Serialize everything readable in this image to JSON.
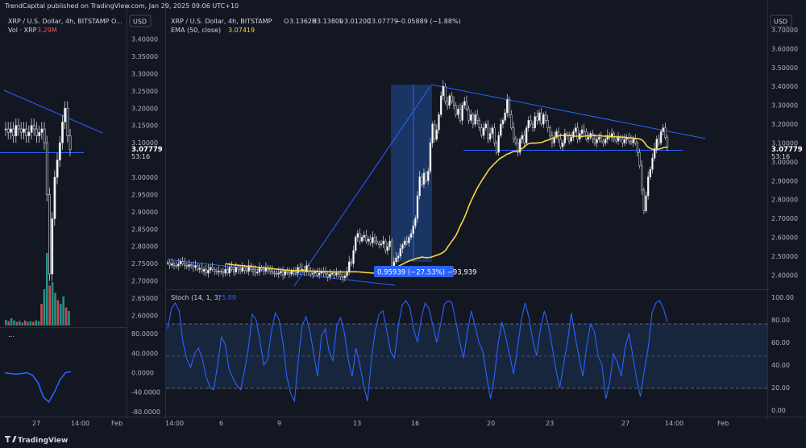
{
  "header": {
    "published": "TrendCapital published on TradingView.com, Jan 29, 2025 09:06 UTC+10",
    "left_symbol": "XRP / U.S. Dollar, 4h, BITSTAMP O...",
    "left_volume_label": "Vol · XRP",
    "left_volume_value": "3.29M",
    "left_osc_label": "...",
    "main_symbol": "XRP / U.S. Dollar, 4h, BITSTAMP",
    "ohlc": {
      "o_label": "O",
      "o": "3.13628",
      "h_label": "H",
      "h": "3.13809",
      "l_label": "L",
      "l": "3.01200",
      "c_label": "C",
      "c": "3.07779",
      "change": "−0.05889 (−1.88%)"
    },
    "ema_label": "EMA (50, close)",
    "ema_value": "3.07419",
    "stoch_label": "Stoch (14, 1, 3)",
    "stoch_value": "75.89"
  },
  "currency_button": "USD",
  "right_currency_button": "USD",
  "price_label": "3.07779",
  "countdown": "53:16",
  "measure_label": "0.95939 (−27.53%) −93,939",
  "footer_logo": "TradingView",
  "colors": {
    "background": "#131722",
    "up": "#ffffff",
    "trendline": "#2962ff",
    "ema": "#f5d547",
    "stoch": "#2962ff",
    "measure_fill": "#1e3f7a",
    "volume_up": "#26a69a",
    "volume_down": "#ef5350"
  },
  "chart_data": [
    {
      "type": "line",
      "panel": "left price chart",
      "y_axis_ticks": [
        "3.40000",
        "3.35000",
        "3.30000",
        "3.25000",
        "3.20000",
        "3.15000",
        "3.10000",
        "3.00000",
        "2.95000",
        "2.90000",
        "2.85000",
        "2.80000",
        "2.75000",
        "2.70000",
        "2.65000",
        "2.60000"
      ],
      "ylim": [
        2.58,
        3.42
      ],
      "x_axis_ticks": [
        "27",
        "14:00",
        "Feb"
      ],
      "close": [
        3.14,
        3.13,
        3.14,
        3.12,
        3.15,
        3.14,
        3.13,
        3.14,
        3.12,
        3.13,
        3.15,
        3.14,
        3.12,
        3.13,
        3.14,
        3.1,
        2.95,
        2.72,
        2.88,
        3.0,
        3.05,
        3.1,
        3.16,
        3.2,
        3.12,
        3.08
      ]
    },
    {
      "type": "line",
      "panel": "left oscillator",
      "y_axis_ticks": [
        "80.0000",
        "40.0000",
        "0.0000",
        "-40.0000",
        "-80.0000"
      ],
      "ylim": [
        -85,
        85
      ],
      "values": [
        0,
        -2,
        -3,
        -2,
        0,
        -5,
        -20,
        -50,
        -60,
        -40,
        -15,
        0,
        2
      ]
    },
    {
      "type": "line",
      "panel": "main price chart",
      "x_axis_ticks": [
        "14:00",
        "6",
        "9",
        "13",
        "16",
        "20",
        "23",
        "27",
        "14:00",
        "Feb"
      ],
      "y_axis_ticks": [
        "3.70000",
        "3.60000",
        "3.50000",
        "3.40000",
        "3.30000",
        "3.20000",
        "3.10000",
        "3.00000",
        "2.90000",
        "2.80000",
        "2.70000",
        "2.60000",
        "2.50000",
        "2.40000"
      ],
      "ylim": [
        2.32,
        3.73
      ],
      "close": [
        2.465,
        2.452,
        2.46,
        2.45,
        2.448,
        2.458,
        2.472,
        2.46,
        2.45,
        2.445,
        2.455,
        2.45,
        2.44,
        2.45,
        2.43,
        2.435,
        2.42,
        2.43,
        2.41,
        2.425,
        2.44,
        2.43,
        2.42,
        2.415,
        2.42,
        2.418,
        2.41,
        2.43,
        2.41,
        2.44,
        2.43,
        2.415,
        2.44,
        2.43,
        2.42,
        2.44,
        2.425,
        2.42,
        2.45,
        2.43,
        2.42,
        2.41,
        2.415,
        2.44,
        2.43,
        2.42,
        2.44,
        2.43,
        2.42,
        2.41,
        2.408,
        2.405,
        2.41,
        2.42,
        2.4,
        2.42,
        2.412,
        2.405,
        2.42,
        2.415,
        2.41,
        2.44,
        2.42,
        2.43,
        2.415,
        2.45,
        2.42,
        2.405,
        2.41,
        2.415,
        2.4,
        2.41,
        2.42,
        2.41,
        2.405,
        2.39,
        2.405,
        2.41,
        2.4,
        2.41,
        2.405,
        2.39,
        2.385,
        2.395,
        2.42,
        2.47,
        2.46,
        2.53,
        2.6,
        2.62,
        2.58,
        2.6,
        2.61,
        2.58,
        2.59,
        2.57,
        2.6,
        2.58,
        2.57,
        2.56,
        2.565,
        2.58,
        2.53,
        2.55,
        2.58,
        2.44,
        2.47,
        2.49,
        2.5,
        2.54,
        2.56,
        2.58,
        2.57,
        2.6,
        2.62,
        2.66,
        2.7,
        2.82,
        2.92,
        2.88,
        2.94,
        2.9,
        2.95,
        3.1,
        3.2,
        3.12,
        3.17,
        3.25,
        3.35,
        3.4,
        3.32,
        3.3,
        3.35,
        3.32,
        3.3,
        3.25,
        3.28,
        3.22,
        3.3,
        3.32,
        3.28,
        3.22,
        3.25,
        3.2,
        3.25,
        3.22,
        3.18,
        3.14,
        3.18,
        3.2,
        3.12,
        3.15,
        3.18,
        3.1,
        3.05,
        3.14,
        3.2,
        3.22,
        3.26,
        3.33,
        3.25,
        3.18,
        3.12,
        3.1,
        3.05,
        3.12,
        3.14,
        3.1,
        3.18,
        3.22,
        3.2,
        3.18,
        3.24,
        3.22,
        3.26,
        3.2,
        3.25,
        3.22,
        3.18,
        3.14,
        3.1,
        3.13,
        3.16,
        3.12,
        3.08,
        3.1,
        3.15,
        3.14,
        3.11,
        3.13,
        3.16,
        3.18,
        3.12,
        3.15,
        3.17,
        3.16,
        3.12,
        3.13,
        3.15,
        3.12,
        3.1,
        3.12,
        3.13,
        3.11,
        3.1,
        3.12,
        3.14,
        3.13,
        3.15,
        3.12,
        3.11,
        3.13,
        3.12,
        3.1,
        3.12,
        3.13,
        3.11,
        3.1,
        3.12,
        3.1,
        3.05,
        2.98,
        2.85,
        2.74,
        2.82,
        2.92,
        2.96,
        3.02,
        3.07,
        3.12,
        3.1,
        3.16,
        3.18,
        3.13,
        3.08
      ],
      "ema50": [
        2.46,
        2.458,
        2.457,
        2.455,
        2.454,
        2.453,
        2.452,
        2.451,
        2.45,
        2.449,
        2.448,
        2.447,
        2.446,
        2.445,
        2.444,
        2.443,
        2.442,
        2.441,
        2.44,
        2.439,
        2.438,
        2.437,
        2.436,
        2.435,
        2.434,
        2.433,
        2.432,
        2.431,
        2.43,
        2.429,
        2.428,
        2.427,
        2.426,
        2.425,
        2.424,
        2.424,
        2.424,
        2.423,
        2.423,
        2.423,
        2.422,
        2.422,
        2.422,
        2.421,
        2.421,
        2.421,
        2.42,
        2.42,
        2.42,
        2.419,
        2.419,
        2.418,
        2.418,
        2.418,
        2.417,
        2.417,
        2.417,
        2.416,
        2.416,
        2.416,
        2.416,
        2.416,
        2.416,
        2.416,
        2.416,
        2.417,
        2.417,
        2.417,
        2.417,
        2.417,
        2.416,
        2.416,
        2.415,
        2.414,
        2.413,
        2.412,
        2.412,
        2.411,
        2.41,
        2.41,
        2.409,
        2.408,
        2.407,
        2.406,
        2.407,
        2.409,
        2.411,
        2.416,
        2.423,
        2.43,
        2.436,
        2.442,
        2.449,
        2.454,
        2.459,
        2.464,
        2.469,
        2.474,
        2.478,
        2.481,
        2.484,
        2.488,
        2.49,
        2.492,
        2.495,
        2.493,
        2.492,
        2.492,
        2.493,
        2.495,
        2.498,
        2.502,
        2.505,
        2.509,
        2.513,
        2.519,
        2.526,
        2.538,
        2.554,
        2.567,
        2.582,
        2.595,
        2.61,
        2.631,
        2.655,
        2.674,
        2.694,
        2.717,
        2.743,
        2.77,
        2.792,
        2.813,
        2.835,
        2.855,
        2.873,
        2.89,
        2.906,
        2.92,
        2.936,
        2.952,
        2.965,
        2.976,
        2.987,
        2.996,
        3.006,
        3.015,
        3.022,
        3.027,
        3.034,
        3.041,
        3.044,
        3.048,
        3.053,
        3.055,
        3.055,
        3.058,
        3.064,
        3.07,
        3.077,
        3.087,
        3.094,
        3.098,
        3.099,
        3.1,
        3.099,
        3.1,
        3.102,
        3.102,
        3.105,
        3.11,
        3.113,
        3.116,
        3.12,
        3.124,
        3.129,
        3.132,
        3.136,
        3.139,
        3.14,
        3.14,
        3.139,
        3.139,
        3.14,
        3.139,
        3.137,
        3.136,
        3.136,
        3.136,
        3.135,
        3.135,
        3.136,
        3.138,
        3.137,
        3.138,
        3.139,
        3.14,
        3.139,
        3.138,
        3.139,
        3.138,
        3.136,
        3.136,
        3.136,
        3.135,
        3.134,
        3.133,
        3.133,
        3.133,
        3.133,
        3.132,
        3.131,
        3.131,
        3.13,
        3.128,
        3.127,
        3.127,
        3.126,
        3.124,
        3.123,
        3.122,
        3.118,
        3.112,
        3.1,
        3.086,
        3.077,
        3.071,
        3.067,
        3.065,
        3.065,
        3.067,
        3.068,
        3.072,
        3.076,
        3.078,
        3.074
      ]
    },
    {
      "type": "line",
      "panel": "stochastic (14, 1, 3)",
      "y_axis_ticks": [
        "100.00",
        "80.00",
        "60.00",
        "40.00",
        "20.00",
        "0.00"
      ],
      "ylim": [
        -5,
        105
      ],
      "bands": [
        80,
        50,
        20
      ],
      "values": [
        72,
        90,
        95,
        88,
        60,
        45,
        38,
        50,
        55,
        46,
        30,
        20,
        18,
        40,
        65,
        58,
        36,
        28,
        22,
        18,
        35,
        55,
        85,
        80,
        62,
        40,
        45,
        70,
        86,
        80,
        60,
        30,
        15,
        8,
        45,
        75,
        83,
        70,
        50,
        30,
        66,
        72,
        52,
        44,
        75,
        82,
        68,
        44,
        30,
        55,
        40,
        22,
        8,
        45,
        70,
        85,
        88,
        70,
        52,
        46,
        75,
        93,
        97,
        91,
        72,
        60,
        82,
        95,
        90,
        75,
        60,
        76,
        94,
        97,
        95,
        78,
        60,
        46,
        70,
        88,
        74,
        60,
        52,
        30,
        10,
        30,
        60,
        78,
        64,
        48,
        32,
        55,
        80,
        95,
        82,
        62,
        48,
        72,
        88,
        76,
        57,
        36,
        20,
        40,
        60,
        86,
        66,
        47,
        30,
        56,
        76,
        70,
        48,
        40,
        10,
        25,
        50,
        42,
        30,
        55,
        68,
        48,
        28,
        12,
        35,
        55,
        86,
        95,
        97,
        90,
        78
      ]
    }
  ]
}
